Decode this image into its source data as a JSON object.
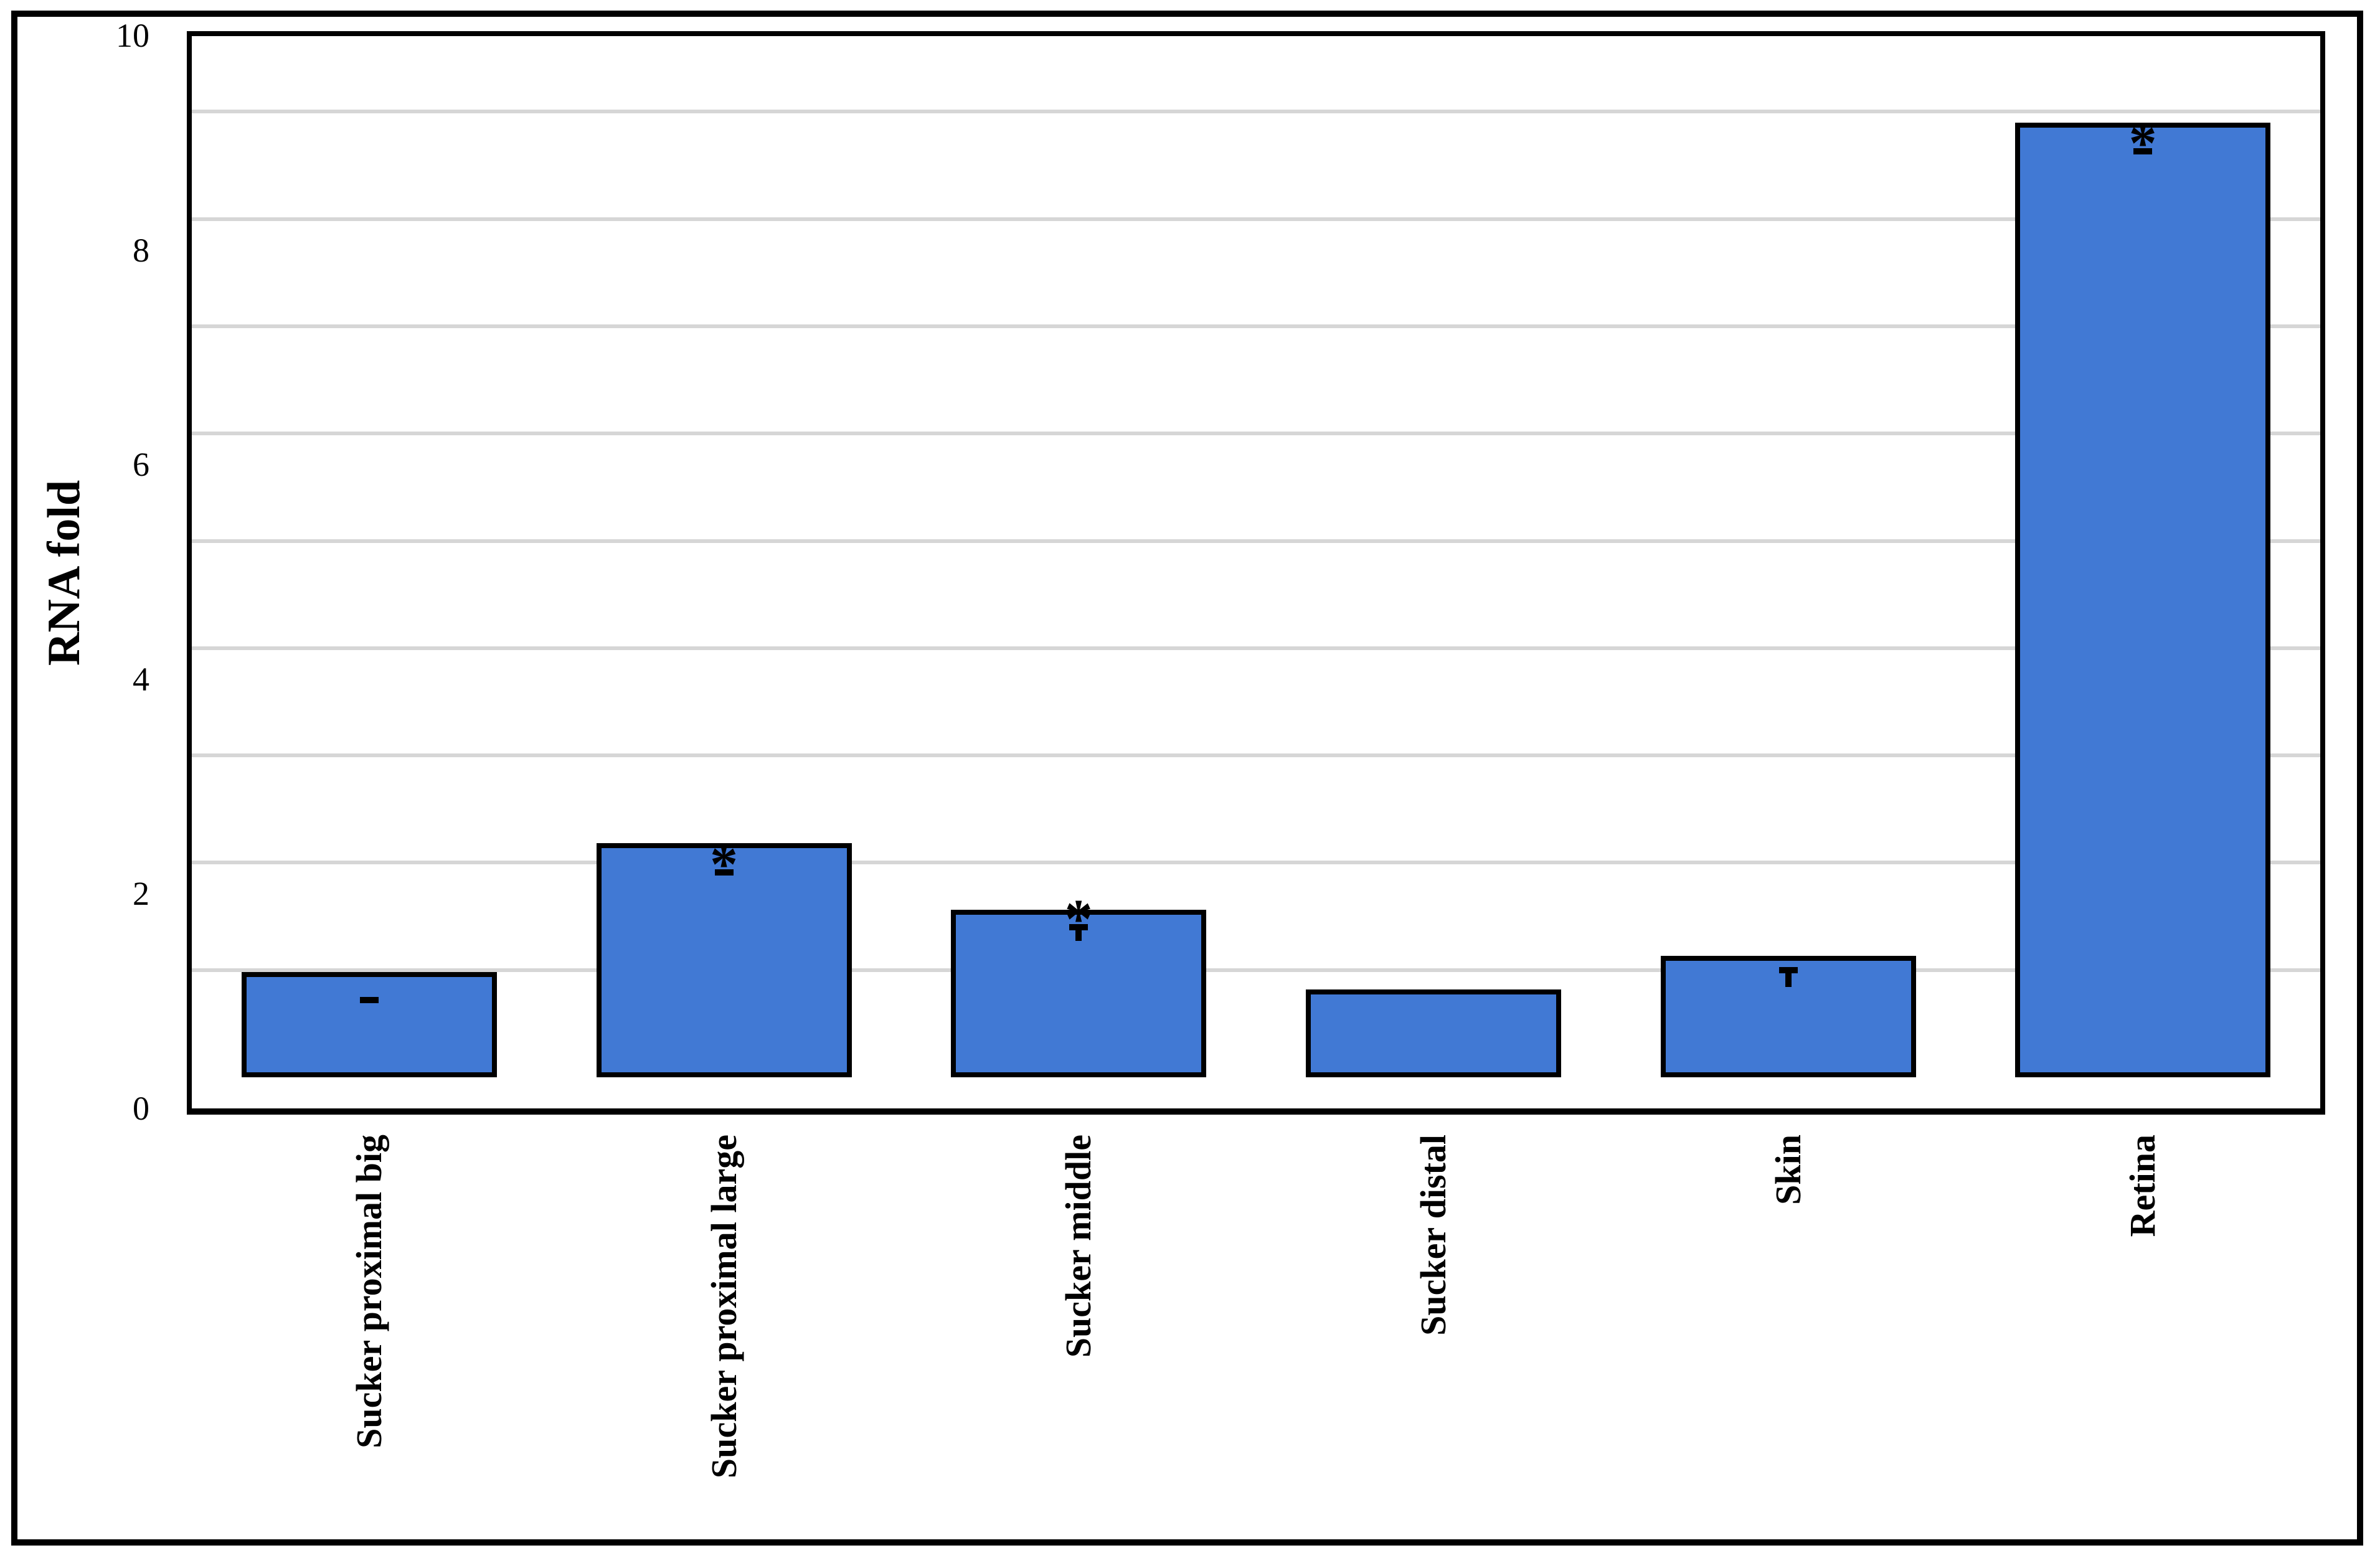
{
  "figure": {
    "background": "#FFFFFF",
    "outer_border_color": "#000000"
  },
  "chart_data": {
    "type": "bar",
    "title": "",
    "xlabel": "",
    "ylabel": "RNA fold",
    "categories": [
      "Sucker proximal big",
      "Sucker proximal large",
      "Sucker middle",
      "Sucker distal",
      "Skin",
      "Retina"
    ],
    "values": [
      0.98,
      2.18,
      1.56,
      0.82,
      1.13,
      8.9
    ],
    "errors_plus": [
      0.06,
      0.05,
      0.16,
      null,
      0.19,
      0.05
    ],
    "significance": [
      "",
      "*",
      "*",
      "",
      "",
      "*"
    ],
    "yticks": [
      0,
      2,
      4,
      6,
      8,
      10
    ],
    "ylim": [
      0,
      10
    ],
    "grid": "horizontal gridlines every 1 unit",
    "legend_position": "none",
    "colors": {
      "bar_fill": "#4179D4",
      "bar_border": "#000000",
      "gridline": "#D6D6D6",
      "error_bar": "#000000",
      "axis_frame": "#000000",
      "text": "#000000"
    }
  }
}
